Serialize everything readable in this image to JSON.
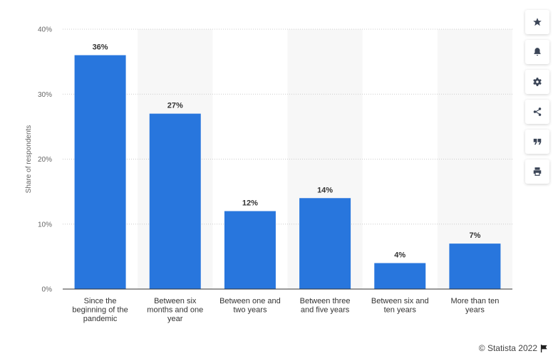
{
  "chart_data": {
    "type": "bar",
    "categories": [
      [
        "Since the",
        "beginning of the",
        "pandemic"
      ],
      [
        "Between six",
        "months and one",
        "year"
      ],
      [
        "Between one and",
        "two years"
      ],
      [
        "Between three",
        "and five years"
      ],
      [
        "Between six and",
        "ten years"
      ],
      [
        "More than ten",
        "years"
      ]
    ],
    "values": [
      36,
      27,
      12,
      14,
      4,
      7
    ],
    "data_labels": [
      "36%",
      "27%",
      "12%",
      "14%",
      "4%",
      "7%"
    ],
    "ylabel": "Share of respondents",
    "ylim": [
      0,
      40
    ],
    "yticks": [
      0,
      10,
      20,
      30,
      40
    ],
    "ytick_labels": [
      "0%",
      "10%",
      "20%",
      "30%",
      "40%"
    ],
    "grid": true,
    "bar_color": "#2876dd",
    "alt_band_color": "#f7f7f7"
  },
  "toolbar": [
    {
      "name": "star-icon",
      "label": "favorite"
    },
    {
      "name": "bell-icon",
      "label": "notifications"
    },
    {
      "name": "gear-icon",
      "label": "settings"
    },
    {
      "name": "share-icon",
      "label": "share"
    },
    {
      "name": "quote-icon",
      "label": "cite"
    },
    {
      "name": "print-icon",
      "label": "print"
    }
  ],
  "credit": "© Statista 2022"
}
